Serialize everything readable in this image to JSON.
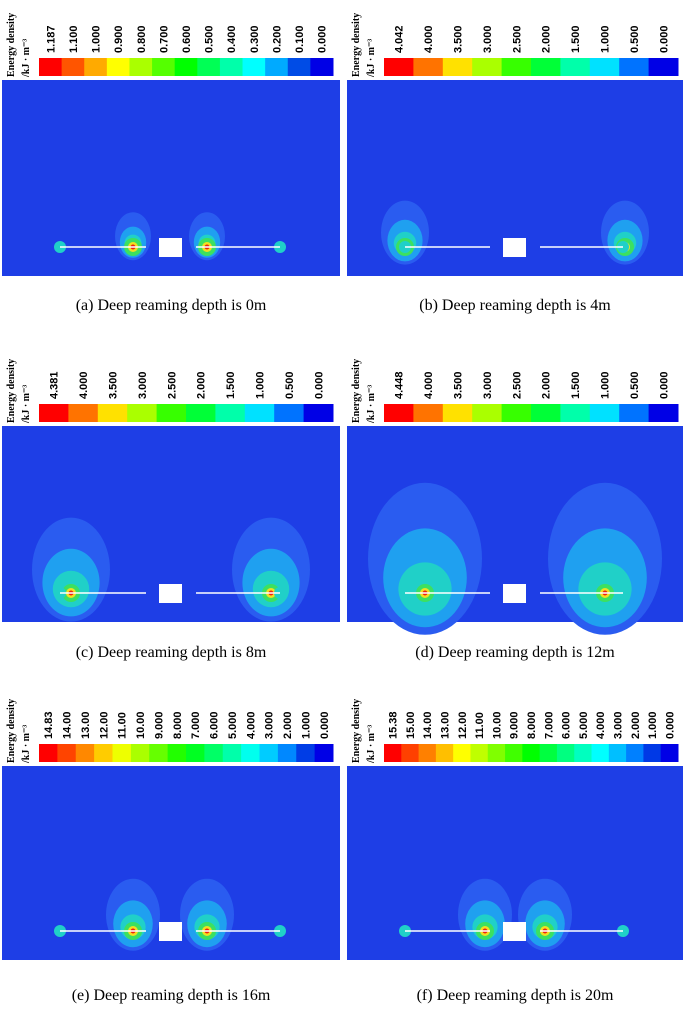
{
  "panels": [
    {
      "legend_title": "Energy density",
      "legend_unit": "/kJ · m⁻³",
      "legend_labels": [
        "1.187",
        "1.100",
        "1.000",
        "0.900",
        "0.800",
        "0.700",
        "0.600",
        "0.500",
        "0.400",
        "0.300",
        "0.200",
        "0.100",
        "0.000"
      ],
      "caption": "(a) Deep reaming depth is 0m"
    },
    {
      "legend_title": "Energy density",
      "legend_unit": "/kJ · m⁻³",
      "legend_labels": [
        "4.042",
        "4.000",
        "3.500",
        "3.000",
        "2.500",
        "2.000",
        "1.500",
        "1.000",
        "0.500",
        "0.000"
      ],
      "caption": "(b) Deep reaming depth is 4m"
    },
    {
      "legend_title": "Energy density",
      "legend_unit": "/kJ · m⁻³",
      "legend_labels": [
        "4.381",
        "4.000",
        "3.500",
        "3.000",
        "2.500",
        "2.000",
        "1.500",
        "1.000",
        "0.500",
        "0.000"
      ],
      "caption": "(c) Deep reaming depth is 8m"
    },
    {
      "legend_title": "Energy density",
      "legend_unit": "/kJ · m⁻³",
      "legend_labels": [
        "4.448",
        "4.000",
        "3.500",
        "3.000",
        "2.500",
        "2.000",
        "1.500",
        "1.000",
        "0.500",
        "0.000"
      ],
      "caption": "(d) Deep reaming depth is 12m"
    },
    {
      "legend_title": "Energy density",
      "legend_unit": "/kJ · m⁻³",
      "legend_labels": [
        "14.83",
        "14.00",
        "13.00",
        "12.00",
        "11.00",
        "10.00",
        "9.000",
        "8.000",
        "7.000",
        "6.000",
        "5.000",
        "4.000",
        "3.000",
        "2.000",
        "1.000",
        "0.000"
      ],
      "caption": "(e) Deep reaming depth is 16m"
    },
    {
      "legend_title": "Energy density",
      "legend_unit": "/kJ · m⁻³",
      "legend_labels": [
        "15.38",
        "15.00",
        "14.00",
        "13.00",
        "12.00",
        "11.00",
        "10.00",
        "9.000",
        "8.000",
        "7.000",
        "6.000",
        "5.000",
        "4.000",
        "3.000",
        "2.000",
        "1.000",
        "0.000"
      ],
      "caption": "(f) Deep reaming depth is 20m"
    }
  ]
}
